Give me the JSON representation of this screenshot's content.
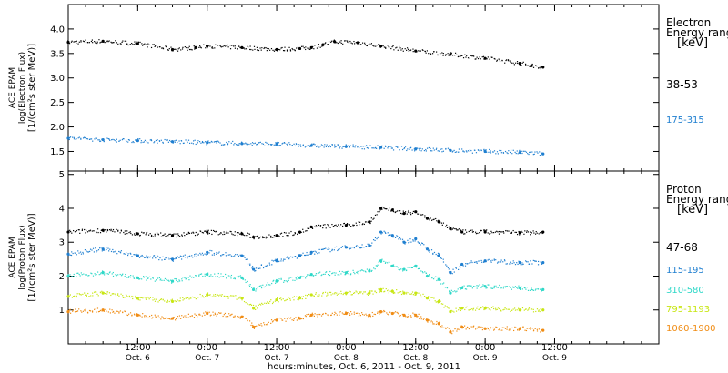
{
  "x_axis": {
    "title": "hours:minutes, Oct.  6, 2011 - Oct.  9, 2011",
    "range_hours": [
      0,
      102
    ],
    "ticks": [
      {
        "hour": 12,
        "time": "12:00",
        "date": "Oct. 6"
      },
      {
        "hour": 24,
        "time": "0:00",
        "date": "Oct. 7"
      },
      {
        "hour": 36,
        "time": "12:00",
        "date": "Oct. 7"
      },
      {
        "hour": 48,
        "time": "0:00",
        "date": "Oct. 8"
      },
      {
        "hour": 60,
        "time": "12:00",
        "date": "Oct. 8"
      },
      {
        "hour": 72,
        "time": "0:00",
        "date": "Oct. 9"
      },
      {
        "hour": 84,
        "time": "12:00",
        "date": "Oct. 9"
      }
    ],
    "minor_tick_step_hours": 3
  },
  "chart_data": [
    {
      "type": "scatter",
      "panel": "electron",
      "ylabel": [
        "ACE EPAM",
        "log(Electron Flux)",
        "[1/(cm²s ster MeV)]"
      ],
      "ylim": [
        1.1,
        4.5
      ],
      "yticks": [
        "1.5",
        "2.0",
        "2.5",
        "3.0",
        "3.5",
        "4.0"
      ],
      "legend_title": [
        "Electron",
        "Energy ranges",
        "[keV]"
      ],
      "series": [
        {
          "name": "38-53",
          "color": "#000000",
          "x": [
            0,
            6,
            12,
            18,
            22,
            24,
            30,
            36,
            40,
            42,
            44,
            46,
            50,
            54,
            60,
            66,
            72,
            78,
            80,
            82
          ],
          "y": [
            3.73,
            3.75,
            3.7,
            3.58,
            3.62,
            3.65,
            3.62,
            3.58,
            3.6,
            3.62,
            3.68,
            3.74,
            3.72,
            3.65,
            3.55,
            3.48,
            3.4,
            3.3,
            3.25,
            3.22
          ]
        },
        {
          "name": "175-315",
          "color": "#1f7fd0",
          "x": [
            0,
            6,
            12,
            18,
            24,
            30,
            36,
            42,
            48,
            54,
            60,
            66,
            72,
            78,
            82
          ],
          "y": [
            1.77,
            1.74,
            1.72,
            1.7,
            1.68,
            1.66,
            1.65,
            1.62,
            1.6,
            1.58,
            1.55,
            1.52,
            1.5,
            1.48,
            1.45
          ]
        }
      ]
    },
    {
      "type": "scatter",
      "panel": "proton",
      "ylabel": [
        "ACE EPAM",
        "log(Proton Flux)",
        "[1/(cm²s ster MeV)]"
      ],
      "ylim": [
        0,
        5.1
      ],
      "yticks": [
        "1",
        "2",
        "3",
        "4",
        "5"
      ],
      "legend_title": [
        "Proton",
        "Energy ranges",
        "[keV]"
      ],
      "series": [
        {
          "name": "47-68",
          "color": "#000000",
          "x": [
            0,
            6,
            12,
            18,
            24,
            30,
            32,
            36,
            40,
            42,
            48,
            52,
            54,
            56,
            58,
            60,
            62,
            64,
            66,
            68,
            72,
            78,
            82
          ],
          "y": [
            3.3,
            3.35,
            3.25,
            3.2,
            3.3,
            3.25,
            3.15,
            3.2,
            3.3,
            3.45,
            3.5,
            3.6,
            4.0,
            3.95,
            3.85,
            3.9,
            3.7,
            3.6,
            3.4,
            3.3,
            3.3,
            3.28,
            3.3
          ]
        },
        {
          "name": "115-195",
          "color": "#1f7fd0",
          "x": [
            0,
            6,
            12,
            18,
            24,
            30,
            32,
            36,
            40,
            42,
            48,
            52,
            54,
            56,
            58,
            60,
            62,
            64,
            66,
            68,
            72,
            78,
            82
          ],
          "y": [
            2.65,
            2.8,
            2.6,
            2.5,
            2.7,
            2.6,
            2.2,
            2.45,
            2.6,
            2.7,
            2.85,
            2.9,
            3.3,
            3.2,
            3.0,
            3.1,
            2.8,
            2.6,
            2.1,
            2.35,
            2.45,
            2.4,
            2.4
          ]
        },
        {
          "name": "310-580",
          "color": "#2fd8c8",
          "x": [
            0,
            6,
            12,
            18,
            24,
            30,
            32,
            36,
            40,
            42,
            48,
            52,
            54,
            56,
            58,
            60,
            62,
            64,
            66,
            68,
            72,
            78,
            82
          ],
          "y": [
            2.0,
            2.1,
            1.95,
            1.85,
            2.05,
            1.95,
            1.6,
            1.85,
            1.95,
            2.05,
            2.1,
            2.15,
            2.45,
            2.3,
            2.2,
            2.3,
            2.0,
            1.9,
            1.5,
            1.65,
            1.7,
            1.65,
            1.6
          ]
        },
        {
          "name": "795-1193",
          "color": "#c8e614",
          "x": [
            0,
            6,
            12,
            18,
            24,
            30,
            32,
            36,
            40,
            42,
            48,
            52,
            54,
            56,
            58,
            60,
            62,
            64,
            66,
            68,
            72,
            78,
            82
          ],
          "y": [
            1.4,
            1.5,
            1.35,
            1.25,
            1.45,
            1.35,
            1.05,
            1.3,
            1.35,
            1.45,
            1.5,
            1.5,
            1.6,
            1.55,
            1.5,
            1.5,
            1.35,
            1.25,
            0.95,
            1.05,
            1.05,
            1.0,
            1.0
          ]
        },
        {
          "name": "1060-1900",
          "color": "#f08c14",
          "x": [
            0,
            6,
            12,
            18,
            24,
            30,
            32,
            36,
            40,
            42,
            48,
            52,
            54,
            56,
            58,
            60,
            62,
            64,
            66,
            68,
            72,
            78,
            82
          ],
          "y": [
            0.95,
            1.0,
            0.85,
            0.75,
            0.9,
            0.8,
            0.5,
            0.7,
            0.75,
            0.85,
            0.9,
            0.85,
            0.95,
            0.9,
            0.85,
            0.85,
            0.7,
            0.6,
            0.35,
            0.5,
            0.45,
            0.45,
            0.4
          ]
        }
      ]
    }
  ]
}
